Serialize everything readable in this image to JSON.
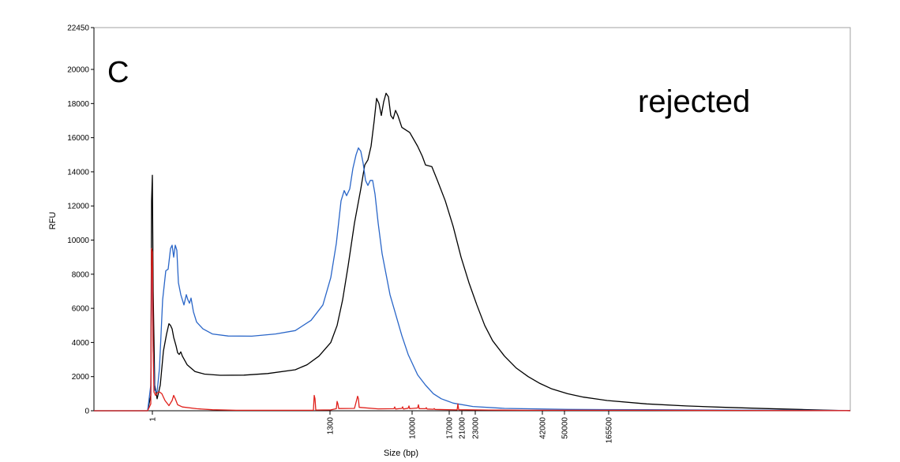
{
  "chart_data": {
    "type": "line",
    "xlabel": "Size (bp)",
    "ylabel": "RFU",
    "ylim": [
      0,
      22450
    ],
    "yticks": [
      0,
      2000,
      4000,
      6000,
      8000,
      10000,
      12000,
      14000,
      16000,
      18000,
      20000,
      22450
    ],
    "x_tick_labels": [
      "1",
      "1300",
      "10000",
      "17000",
      "21000",
      "23000",
      "42000",
      "50000",
      "165500"
    ],
    "annotations": {
      "panel": "C",
      "status": "rejected"
    },
    "series_colors": {
      "black": "#000000",
      "blue": "#2a66c8",
      "red": "#e0201b"
    },
    "series": [
      {
        "color_key": "black",
        "points": [
          [
            0,
            0
          ],
          [
            68,
            0
          ],
          [
            72,
            900
          ],
          [
            73,
            12300
          ],
          [
            74,
            13800
          ],
          [
            75,
            7000
          ],
          [
            77,
            1500
          ],
          [
            80,
            700
          ],
          [
            84,
            1500
          ],
          [
            88,
            3500
          ],
          [
            92,
            4500
          ],
          [
            95,
            5100
          ],
          [
            97,
            5000
          ],
          [
            99,
            4800
          ],
          [
            101,
            4300
          ],
          [
            104,
            3800
          ],
          [
            106,
            3400
          ],
          [
            108,
            3300
          ],
          [
            110,
            3450
          ],
          [
            112,
            3200
          ],
          [
            118,
            2700
          ],
          [
            128,
            2300
          ],
          [
            140,
            2150
          ],
          [
            160,
            2080
          ],
          [
            190,
            2090
          ],
          [
            220,
            2180
          ],
          [
            255,
            2400
          ],
          [
            270,
            2700
          ],
          [
            285,
            3200
          ],
          [
            300,
            4000
          ],
          [
            308,
            5000
          ],
          [
            315,
            6500
          ],
          [
            322,
            8500
          ],
          [
            330,
            11000
          ],
          [
            338,
            13000
          ],
          [
            343,
            14400
          ],
          [
            347,
            14700
          ],
          [
            351,
            15500
          ],
          [
            355,
            17000
          ],
          [
            358,
            18300
          ],
          [
            361,
            18000
          ],
          [
            364,
            17300
          ],
          [
            367,
            18100
          ],
          [
            370,
            18600
          ],
          [
            373,
            18400
          ],
          [
            376,
            17300
          ],
          [
            379,
            17100
          ],
          [
            382,
            17600
          ],
          [
            385,
            17300
          ],
          [
            390,
            16600
          ],
          [
            400,
            16300
          ],
          [
            410,
            15500
          ],
          [
            416,
            14900
          ],
          [
            420,
            14400
          ],
          [
            428,
            14300
          ],
          [
            435,
            13500
          ],
          [
            445,
            12300
          ],
          [
            455,
            10800
          ],
          [
            465,
            9000
          ],
          [
            475,
            7500
          ],
          [
            485,
            6200
          ],
          [
            495,
            5000
          ],
          [
            505,
            4100
          ],
          [
            520,
            3200
          ],
          [
            535,
            2500
          ],
          [
            550,
            2000
          ],
          [
            565,
            1600
          ],
          [
            580,
            1280
          ],
          [
            600,
            1000
          ],
          [
            620,
            800
          ],
          [
            650,
            600
          ],
          [
            700,
            400
          ],
          [
            750,
            280
          ],
          [
            800,
            200
          ],
          [
            850,
            130
          ],
          [
            900,
            70
          ],
          [
            958,
            0
          ]
        ]
      },
      {
        "color_key": "blue",
        "points": [
          [
            0,
            0
          ],
          [
            68,
            0
          ],
          [
            72,
            1500
          ],
          [
            73,
            8500
          ],
          [
            74,
            7500
          ],
          [
            75,
            3500
          ],
          [
            77,
            1200
          ],
          [
            80,
            1100
          ],
          [
            83,
            2500
          ],
          [
            87,
            6500
          ],
          [
            91,
            8200
          ],
          [
            94,
            8300
          ],
          [
            97,
            9500
          ],
          [
            99,
            9700
          ],
          [
            101,
            9000
          ],
          [
            103,
            9700
          ],
          [
            105,
            9400
          ],
          [
            107,
            7500
          ],
          [
            110,
            6800
          ],
          [
            114,
            6200
          ],
          [
            117,
            6800
          ],
          [
            119,
            6500
          ],
          [
            121,
            6300
          ],
          [
            123,
            6600
          ],
          [
            126,
            5800
          ],
          [
            130,
            5200
          ],
          [
            138,
            4800
          ],
          [
            150,
            4500
          ],
          [
            170,
            4380
          ],
          [
            200,
            4370
          ],
          [
            230,
            4500
          ],
          [
            255,
            4700
          ],
          [
            275,
            5300
          ],
          [
            290,
            6200
          ],
          [
            300,
            7800
          ],
          [
            307,
            9800
          ],
          [
            313,
            12300
          ],
          [
            317,
            12900
          ],
          [
            320,
            12600
          ],
          [
            324,
            13000
          ],
          [
            328,
            14200
          ],
          [
            332,
            15000
          ],
          [
            335,
            15400
          ],
          [
            338,
            15200
          ],
          [
            341,
            14500
          ],
          [
            344,
            13500
          ],
          [
            347,
            13200
          ],
          [
            350,
            13500
          ],
          [
            353,
            13500
          ],
          [
            356,
            12700
          ],
          [
            360,
            11000
          ],
          [
            365,
            9200
          ],
          [
            370,
            8000
          ],
          [
            375,
            6800
          ],
          [
            380,
            6000
          ],
          [
            385,
            5200
          ],
          [
            390,
            4400
          ],
          [
            398,
            3300
          ],
          [
            410,
            2100
          ],
          [
            420,
            1500
          ],
          [
            430,
            1000
          ],
          [
            440,
            700
          ],
          [
            455,
            450
          ],
          [
            480,
            250
          ],
          [
            520,
            140
          ],
          [
            600,
            80
          ],
          [
            700,
            60
          ],
          [
            800,
            40
          ],
          [
            958,
            20
          ]
        ]
      },
      {
        "color_key": "red",
        "points": [
          [
            0,
            0
          ],
          [
            68,
            0
          ],
          [
            72,
            400
          ],
          [
            73,
            9500
          ],
          [
            74,
            9300
          ],
          [
            75,
            3500
          ],
          [
            76,
            1100
          ],
          [
            78,
            900
          ],
          [
            80,
            1050
          ],
          [
            83,
            1100
          ],
          [
            86,
            1000
          ],
          [
            90,
            600
          ],
          [
            95,
            300
          ],
          [
            99,
            600
          ],
          [
            101,
            900
          ],
          [
            103,
            700
          ],
          [
            106,
            350
          ],
          [
            112,
            220
          ],
          [
            130,
            120
          ],
          [
            150,
            60
          ],
          [
            180,
            30
          ],
          [
            278,
            30
          ],
          [
            279,
            900
          ],
          [
            280,
            700
          ],
          [
            281,
            40
          ],
          [
            300,
            50
          ],
          [
            307,
            120
          ],
          [
            308,
            550
          ],
          [
            309,
            400
          ],
          [
            310,
            130
          ],
          [
            330,
            140
          ],
          [
            334,
            850
          ],
          [
            335,
            700
          ],
          [
            336,
            200
          ],
          [
            360,
            110
          ],
          [
            380,
            120
          ],
          [
            381,
            220
          ],
          [
            382,
            100
          ],
          [
            390,
            140
          ],
          [
            391,
            230
          ],
          [
            392,
            100
          ],
          [
            398,
            150
          ],
          [
            399,
            280
          ],
          [
            400,
            120
          ],
          [
            410,
            160
          ],
          [
            411,
            350
          ],
          [
            412,
            120
          ],
          [
            420,
            120
          ],
          [
            421,
            180
          ],
          [
            422,
            100
          ],
          [
            430,
            90
          ],
          [
            431,
            130
          ],
          [
            432,
            80
          ],
          [
            460,
            50
          ],
          [
            461,
            400
          ],
          [
            462,
            60
          ],
          [
            500,
            40
          ],
          [
            550,
            30
          ],
          [
            600,
            30
          ],
          [
            700,
            30
          ],
          [
            800,
            20
          ],
          [
            958,
            10
          ]
        ]
      }
    ]
  }
}
